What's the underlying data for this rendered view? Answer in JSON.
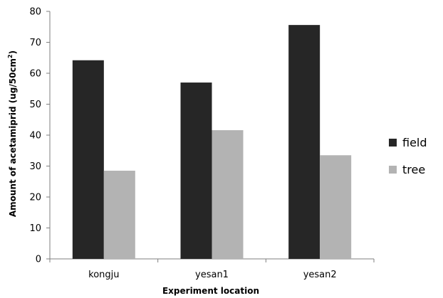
{
  "chart_data": {
    "type": "bar",
    "categories": [
      "kongju",
      "yesan1",
      "yesan2"
    ],
    "series": [
      {
        "name": "field",
        "values": [
          64.2,
          57.0,
          75.6
        ],
        "color": "#262626"
      },
      {
        "name": "tree",
        "values": [
          28.5,
          41.6,
          33.5
        ],
        "color": "#b3b3b3"
      }
    ],
    "xlabel": "Experiment location",
    "ylabel": {
      "main": "Amount of acetamiprid  (ug/50cm",
      "sup": "2",
      "tail": ")"
    },
    "ylim": [
      0,
      80
    ],
    "yticks": [
      0,
      10,
      20,
      30,
      40,
      50,
      60,
      70,
      80
    ],
    "grid": false,
    "legend": "right"
  }
}
